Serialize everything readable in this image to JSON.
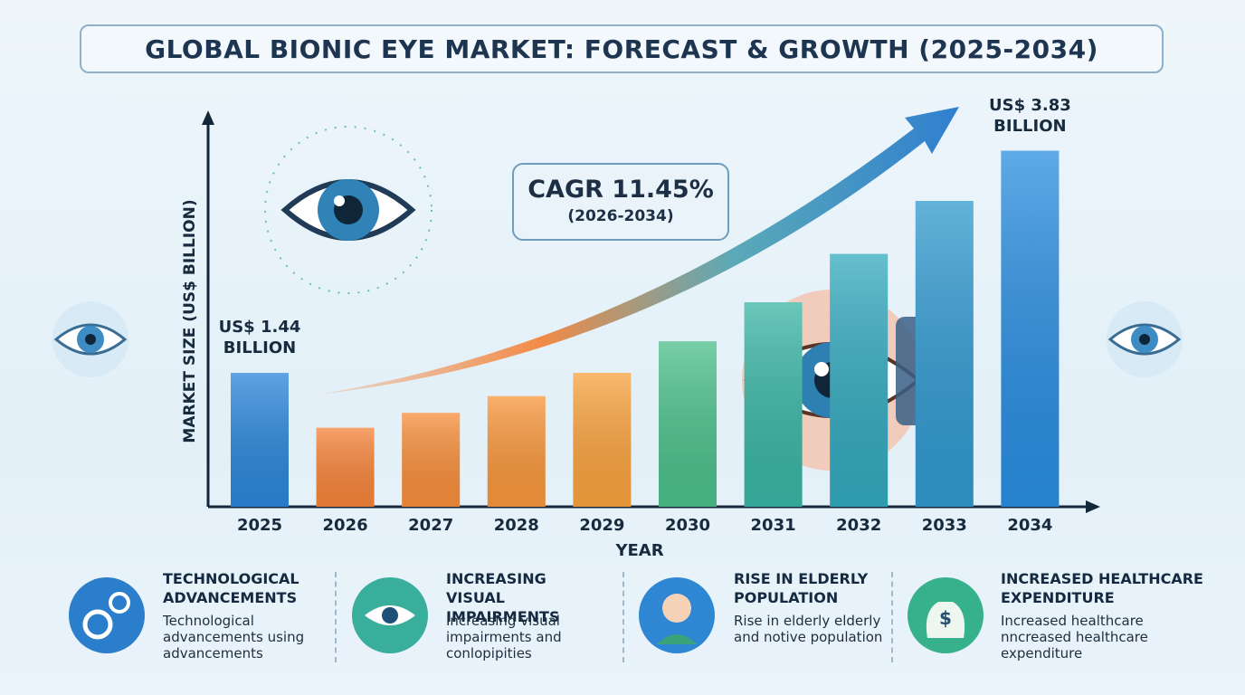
{
  "chart_data": {
    "type": "bar",
    "title": "GLOBAL BIONIC EYE MARKET: FORECAST & GROWTH (2025-2034)",
    "y_label": "MARKET SIZE (US$ BILLION)",
    "x_label": "YEAR",
    "categories": [
      "2025",
      "2026",
      "2027",
      "2028",
      "2029",
      "2030",
      "2031",
      "2032",
      "2033",
      "2034"
    ],
    "values": [
      1.44,
      0.85,
      1.01,
      1.19,
      1.44,
      1.78,
      2.2,
      2.72,
      3.29,
      3.83
    ],
    "value_labels": [
      "US$ 1.44 BILLION",
      null,
      null,
      null,
      null,
      null,
      null,
      null,
      null,
      "US$ 3.83 BILLION"
    ],
    "colors": [
      "#2b86d9",
      "#f5843a",
      "#f68d3a",
      "#f7963b",
      "#f8a23e",
      "#4cc08a",
      "#39b5a4",
      "#33a9bd",
      "#3199cf",
      "#2a8ee0"
    ],
    "ylim": [
      0,
      4.4
    ],
    "annotation": {
      "title": "CAGR 11.45%",
      "period": "(2026-2034)"
    },
    "factors": [
      {
        "title": "TECHNOLOGICAL ADVANCEMENTS",
        "text": "Technological advancements using advancements"
      },
      {
        "title": "INCREASING VISUAL IMPAIRMENTS",
        "text": "Increasing visual impairments and conlopipities"
      },
      {
        "title": "RISE IN ELDERLY POPULATION",
        "text": "Rise in elderly elderly and notive population"
      },
      {
        "title": "INCREASED HEALTHCARE EXPENDITURE",
        "text": "Increased healthcare nncreased healthcare expenditure"
      }
    ]
  }
}
